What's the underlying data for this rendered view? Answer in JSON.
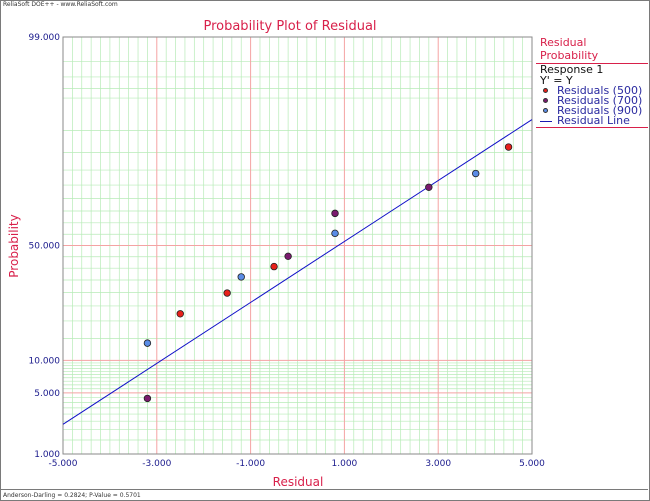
{
  "window": {
    "header_text": "ReliaSoft DOE++ - www.ReliaSoft.com",
    "footer_text": "Anderson-Darling = 0.2824; P-Value = 0.5701"
  },
  "colors": {
    "title": "#d8204a",
    "tick_labels": "#1a1a8c",
    "major_grid": "#f4a3a3",
    "minor_grid": "#b7ebb7",
    "fit_line": "#1010c8",
    "series_500": "#e8201a",
    "series_700": "#7a1a6e",
    "series_900": "#5a8ce6"
  },
  "legend": {
    "title": "Residual Probability",
    "response": "Response 1",
    "transform": "Y' = Y",
    "items": [
      {
        "label": "Residuals (500)",
        "color": "#e8201a"
      },
      {
        "label": "Residuals (700)",
        "color": "#7a1a6e"
      },
      {
        "label": "Residuals (900)",
        "color": "#5a8ce6"
      }
    ],
    "line_label": "Residual Line"
  },
  "chart_data": {
    "type": "scatter",
    "title": "Probability Plot of Residual",
    "xlabel": "Residual",
    "ylabel": "Probability",
    "xlim": [
      -5,
      5
    ],
    "ylim": [
      1,
      99
    ],
    "y_scale": "normal-probability",
    "x_ticks": [
      -5,
      -3,
      -1,
      1,
      3,
      5
    ],
    "x_tick_labels": [
      "-5.000",
      "-3.000",
      "-1.000",
      "1.000",
      "3.000",
      "5.000"
    ],
    "y_ticks": [
      1,
      5,
      10,
      50,
      99
    ],
    "y_tick_labels": [
      "1.000",
      "5.000",
      "10.000",
      "50.000",
      "99.000"
    ],
    "grid": true,
    "legend_position": "right",
    "series": [
      {
        "name": "Residuals (500)",
        "color": "#e8201a",
        "x": [
          -2.5,
          -1.5,
          -0.5,
          4.5
        ],
        "y": [
          22.3,
          29.8,
          40.7,
          86.4
        ]
      },
      {
        "name": "Residuals (700)",
        "color": "#7a1a6e",
        "x": [
          -3.2,
          -0.2,
          0.8,
          2.8
        ],
        "y": [
          4.4,
          45.2,
          64.0,
          74.2
        ]
      },
      {
        "name": "Residuals (900)",
        "color": "#5a8ce6",
        "x": [
          -3.2,
          -1.2,
          0.8,
          3.8
        ],
        "y": [
          13.8,
          36.3,
          55.4,
          78.9
        ]
      }
    ],
    "fit_line": {
      "name": "Residual Line",
      "x": [
        -5,
        5
      ],
      "y": [
        2.3,
        92.0
      ]
    }
  }
}
